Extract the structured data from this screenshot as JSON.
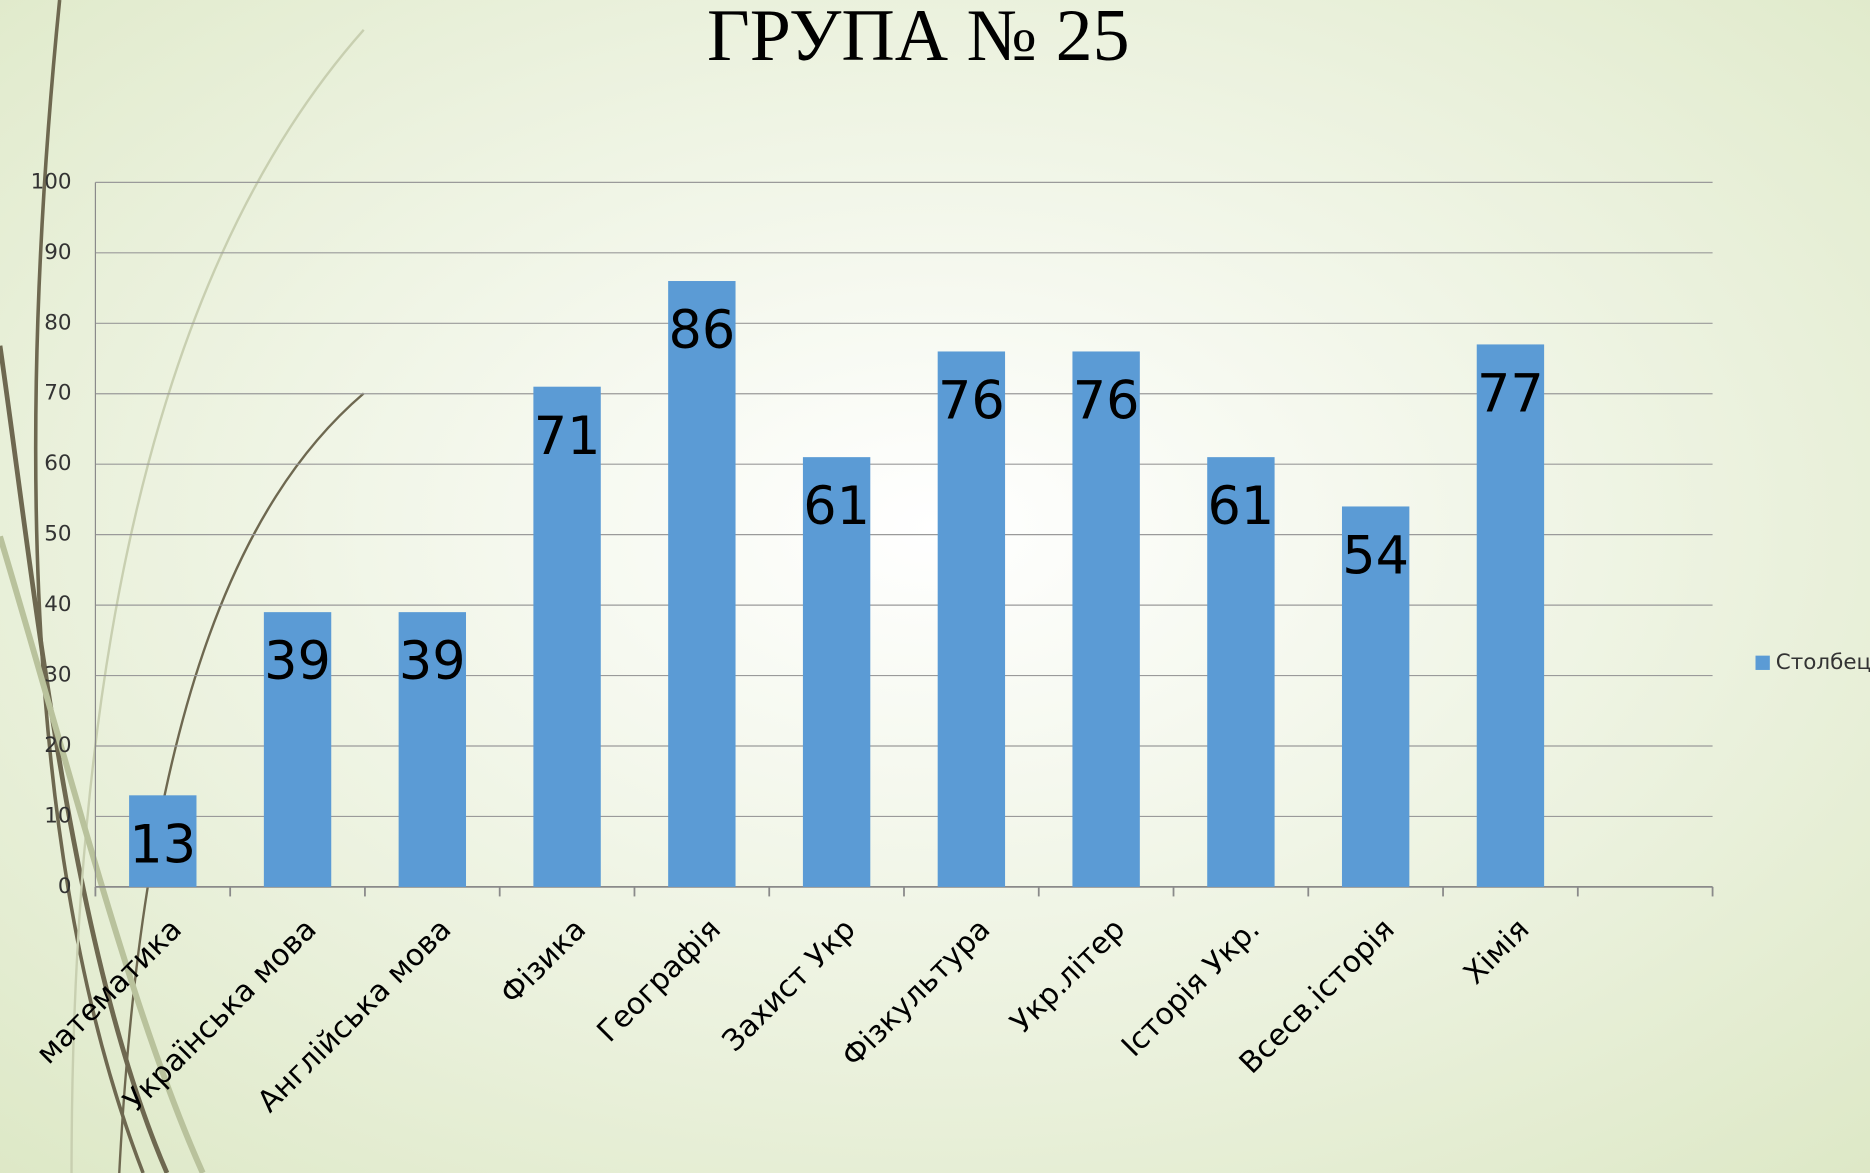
{
  "chart_data": {
    "type": "bar",
    "title": "ГРУПА № 25",
    "categories": [
      "математика",
      "Українська мова",
      "Англійська мова",
      "Фізика",
      "Географія",
      "Захист Укр",
      "Фізкультура",
      "Укр.літер",
      "Історія Укр.",
      "Всесв.історія",
      "Хімія",
      null
    ],
    "series": [
      {
        "name": "Столбец",
        "color": "#5b9bd5",
        "values": [
          13,
          39,
          39,
          71,
          86,
          61,
          76,
          76,
          61,
          54,
          77,
          null
        ]
      }
    ],
    "ylim": [
      0,
      100
    ],
    "yticks": [
      0,
      10,
      20,
      30,
      40,
      50,
      60,
      70,
      80,
      90,
      100
    ],
    "grid": true,
    "legend": "right"
  }
}
